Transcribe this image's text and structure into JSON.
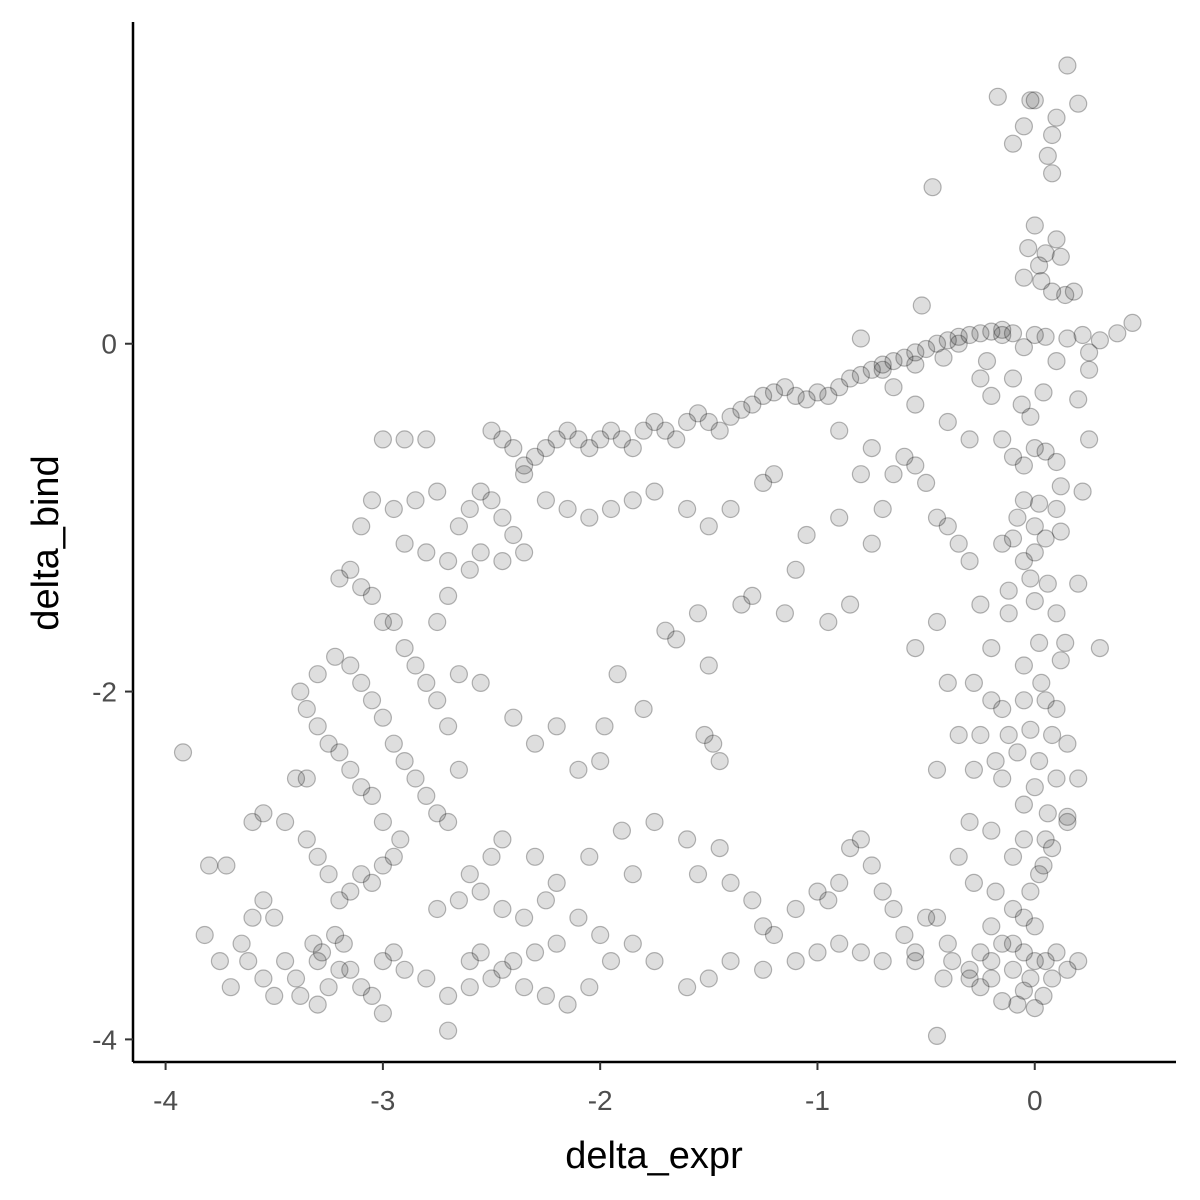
{
  "chart_data": {
    "type": "scatter",
    "title": "",
    "xlabel": "delta_expr",
    "ylabel": "delta_bind",
    "xlim": [
      -4.15,
      0.65
    ],
    "ylim": [
      -4.13,
      1.85
    ],
    "xticks": [
      -4,
      -3,
      -2,
      -1,
      0
    ],
    "yticks": [
      -4,
      -2,
      0
    ],
    "x_tick_labels": [
      "-4",
      "-3",
      "-2",
      "-1",
      "0"
    ],
    "y_tick_labels": [
      "-4",
      "-2",
      "0"
    ],
    "grid": false,
    "legend": "none",
    "point_color": "#000000",
    "point_fill_opacity": 0.13,
    "points": [
      [
        0.15,
        1.6
      ],
      [
        -0.17,
        1.42
      ],
      [
        -0.02,
        1.4
      ],
      [
        0.0,
        1.4
      ],
      [
        0.2,
        1.38
      ],
      [
        0.1,
        1.3
      ],
      [
        -0.05,
        1.25
      ],
      [
        0.08,
        1.2
      ],
      [
        -0.1,
        1.15
      ],
      [
        0.06,
        1.08
      ],
      [
        0.08,
        0.98
      ],
      [
        -0.47,
        0.9
      ],
      [
        0.0,
        0.68
      ],
      [
        0.1,
        0.6
      ],
      [
        -0.03,
        0.55
      ],
      [
        0.05,
        0.52
      ],
      [
        0.12,
        0.5
      ],
      [
        0.02,
        0.45
      ],
      [
        -0.05,
        0.38
      ],
      [
        0.03,
        0.36
      ],
      [
        0.08,
        0.3
      ],
      [
        0.14,
        0.28
      ],
      [
        0.18,
        0.3
      ],
      [
        -0.52,
        0.22
      ],
      [
        0.45,
        0.12
      ],
      [
        -0.8,
        0.03
      ],
      [
        -0.35,
        0.0
      ],
      [
        -0.15,
        0.05
      ],
      [
        -0.05,
        -0.02
      ],
      [
        0.22,
        0.05
      ],
      [
        0.3,
        0.02
      ],
      [
        0.38,
        0.06
      ],
      [
        0.25,
        -0.05
      ],
      [
        0.1,
        -0.1
      ],
      [
        0.25,
        -0.15
      ],
      [
        -0.22,
        -0.1
      ],
      [
        -0.42,
        -0.08
      ],
      [
        -0.55,
        -0.12
      ],
      [
        -0.7,
        -0.15
      ],
      [
        -0.65,
        -0.25
      ],
      [
        -0.55,
        -0.35
      ],
      [
        -0.4,
        -0.45
      ],
      [
        -0.3,
        -0.55
      ],
      [
        -0.15,
        -0.55
      ],
      [
        -0.1,
        -0.65
      ],
      [
        -0.05,
        -0.7
      ],
      [
        0.0,
        -0.6
      ],
      [
        0.05,
        -0.62
      ],
      [
        0.1,
        -0.68
      ],
      [
        -0.02,
        -0.42
      ],
      [
        0.2,
        -0.32
      ],
      [
        0.25,
        -0.55
      ],
      [
        0.04,
        -0.28
      ],
      [
        -0.06,
        -0.35
      ],
      [
        0.12,
        -0.82
      ],
      [
        0.22,
        -0.85
      ],
      [
        0.1,
        -0.95
      ],
      [
        0.02,
        -0.92
      ],
      [
        -0.05,
        -0.9
      ],
      [
        -0.08,
        -1.0
      ],
      [
        0.0,
        -1.05
      ],
      [
        0.05,
        -1.12
      ],
      [
        0.12,
        -1.08
      ],
      [
        -0.1,
        -1.12
      ],
      [
        -0.15,
        -1.15
      ],
      [
        -0.05,
        -1.25
      ],
      [
        0.0,
        -1.2
      ],
      [
        -0.02,
        -1.35
      ],
      [
        0.06,
        -1.38
      ],
      [
        -0.12,
        -1.42
      ],
      [
        0.0,
        -1.48
      ],
      [
        0.1,
        -1.55
      ],
      [
        0.2,
        -1.38
      ],
      [
        -0.12,
        -1.55
      ],
      [
        -0.25,
        -1.5
      ],
      [
        0.14,
        -1.72
      ],
      [
        0.02,
        -1.72
      ],
      [
        -0.05,
        -1.85
      ],
      [
        0.12,
        -1.82
      ],
      [
        0.03,
        -1.95
      ],
      [
        -0.2,
        -1.75
      ],
      [
        0.3,
        -1.75
      ],
      [
        -0.55,
        -1.75
      ],
      [
        -0.4,
        -1.95
      ],
      [
        -0.28,
        -1.95
      ],
      [
        -0.2,
        -2.05
      ],
      [
        -0.15,
        -2.1
      ],
      [
        -0.05,
        -2.05
      ],
      [
        0.05,
        -2.05
      ],
      [
        0.1,
        -2.1
      ],
      [
        -0.12,
        -2.25
      ],
      [
        -0.02,
        -2.22
      ],
      [
        -0.25,
        -2.25
      ],
      [
        -0.35,
        -2.25
      ],
      [
        -0.18,
        -2.4
      ],
      [
        -0.08,
        -2.35
      ],
      [
        0.08,
        -2.25
      ],
      [
        0.15,
        -2.3
      ],
      [
        0.02,
        -2.4
      ],
      [
        -0.45,
        -2.45
      ],
      [
        -0.28,
        -2.45
      ],
      [
        -0.15,
        -2.5
      ],
      [
        0.0,
        -2.55
      ],
      [
        0.1,
        -2.5
      ],
      [
        0.2,
        -2.5
      ],
      [
        -0.05,
        -2.65
      ],
      [
        0.06,
        -2.7
      ],
      [
        -0.3,
        -2.75
      ],
      [
        0.15,
        -2.72
      ],
      [
        0.15,
        -2.75
      ],
      [
        -0.2,
        -2.8
      ],
      [
        -0.05,
        -2.85
      ],
      [
        0.05,
        -2.85
      ],
      [
        0.08,
        -2.9
      ],
      [
        -0.1,
        -2.95
      ],
      [
        -0.35,
        -2.95
      ],
      [
        0.02,
        -3.05
      ],
      [
        -0.02,
        -3.15
      ],
      [
        0.04,
        -3.0
      ],
      [
        -0.18,
        -3.15
      ],
      [
        -0.28,
        -3.1
      ],
      [
        -0.1,
        -3.25
      ],
      [
        -0.05,
        -3.3
      ],
      [
        0.0,
        -3.35
      ],
      [
        -0.2,
        -3.35
      ],
      [
        -0.15,
        -3.45
      ],
      [
        -0.05,
        -3.5
      ],
      [
        0.0,
        -3.55
      ],
      [
        0.05,
        -3.55
      ],
      [
        0.1,
        -3.5
      ],
      [
        -0.1,
        -3.6
      ],
      [
        -0.2,
        -3.65
      ],
      [
        -0.3,
        -3.6
      ],
      [
        -0.42,
        -3.65
      ],
      [
        -0.25,
        -3.7
      ],
      [
        -0.05,
        -3.72
      ],
      [
        0.04,
        -3.75
      ],
      [
        -0.15,
        -3.78
      ],
      [
        0.0,
        -3.82
      ],
      [
        -0.45,
        -3.98
      ],
      [
        -0.55,
        -3.55
      ],
      [
        -0.4,
        -3.45
      ],
      [
        -0.45,
        -3.3
      ],
      [
        -0.5,
        -3.3
      ],
      [
        -0.25,
        -3.5
      ],
      [
        -0.1,
        -3.45
      ],
      [
        0.2,
        -3.55
      ],
      [
        -3.92,
        -2.35
      ],
      [
        -3.8,
        -3.0
      ],
      [
        -3.72,
        -3.0
      ],
      [
        -3.82,
        -3.4
      ],
      [
        -3.75,
        -3.55
      ],
      [
        -3.7,
        -3.7
      ],
      [
        -3.65,
        -3.45
      ],
      [
        -3.6,
        -3.3
      ],
      [
        -3.55,
        -3.2
      ],
      [
        -3.5,
        -3.3
      ],
      [
        -3.45,
        -3.55
      ],
      [
        -3.4,
        -3.65
      ],
      [
        -3.38,
        -3.75
      ],
      [
        -3.3,
        -3.8
      ],
      [
        -3.25,
        -3.7
      ],
      [
        -3.2,
        -3.6
      ],
      [
        -3.3,
        -3.55
      ],
      [
        -3.28,
        -3.5
      ],
      [
        -3.32,
        -3.45
      ],
      [
        -3.22,
        -3.4
      ],
      [
        -3.18,
        -3.45
      ],
      [
        -3.15,
        -3.6
      ],
      [
        -3.1,
        -3.7
      ],
      [
        -3.05,
        -3.75
      ],
      [
        -3.0,
        -3.85
      ],
      [
        -3.5,
        -3.75
      ],
      [
        -3.55,
        -3.65
      ],
      [
        -3.62,
        -3.55
      ],
      [
        -3.6,
        -2.75
      ],
      [
        -3.55,
        -2.7
      ],
      [
        -3.4,
        -2.5
      ],
      [
        -3.35,
        -2.5
      ],
      [
        -3.45,
        -2.75
      ],
      [
        -3.35,
        -2.85
      ],
      [
        -3.3,
        -2.95
      ],
      [
        -3.25,
        -3.05
      ],
      [
        -3.2,
        -3.2
      ],
      [
        -3.15,
        -3.15
      ],
      [
        -3.1,
        -3.05
      ],
      [
        -3.05,
        -3.1
      ],
      [
        -3.0,
        -3.0
      ],
      [
        -2.95,
        -2.95
      ],
      [
        -2.92,
        -2.85
      ],
      [
        -3.0,
        -2.75
      ],
      [
        -3.05,
        -2.6
      ],
      [
        -3.1,
        -2.55
      ],
      [
        -3.15,
        -2.45
      ],
      [
        -3.2,
        -2.35
      ],
      [
        -3.25,
        -2.3
      ],
      [
        -3.3,
        -2.2
      ],
      [
        -3.35,
        -2.1
      ],
      [
        -3.38,
        -2.0
      ],
      [
        -3.3,
        -1.9
      ],
      [
        -3.22,
        -1.8
      ],
      [
        -3.15,
        -1.85
      ],
      [
        -3.1,
        -1.95
      ],
      [
        -3.05,
        -2.05
      ],
      [
        -3.0,
        -2.15
      ],
      [
        -2.95,
        -2.3
      ],
      [
        -2.9,
        -2.4
      ],
      [
        -2.85,
        -2.5
      ],
      [
        -2.8,
        -2.6
      ],
      [
        -2.75,
        -2.7
      ],
      [
        -2.7,
        -2.75
      ],
      [
        -2.65,
        -2.45
      ],
      [
        -2.7,
        -2.2
      ],
      [
        -2.75,
        -2.05
      ],
      [
        -2.8,
        -1.95
      ],
      [
        -2.85,
        -1.85
      ],
      [
        -2.9,
        -1.75
      ],
      [
        -2.95,
        -1.6
      ],
      [
        -3.0,
        -1.6
      ],
      [
        -3.05,
        -1.45
      ],
      [
        -3.1,
        -1.4
      ],
      [
        -3.15,
        -1.3
      ],
      [
        -3.2,
        -1.35
      ],
      [
        -3.1,
        -1.05
      ],
      [
        -3.0,
        -0.55
      ],
      [
        -2.9,
        -0.55
      ],
      [
        -2.8,
        -0.55
      ],
      [
        -2.75,
        -0.85
      ],
      [
        -2.85,
        -0.9
      ],
      [
        -2.95,
        -0.95
      ],
      [
        -3.05,
        -0.9
      ],
      [
        -2.9,
        -1.15
      ],
      [
        -2.8,
        -1.2
      ],
      [
        -2.7,
        -1.25
      ],
      [
        -2.65,
        -1.05
      ],
      [
        -2.6,
        -0.95
      ],
      [
        -2.55,
        -0.85
      ],
      [
        -2.5,
        -0.9
      ],
      [
        -2.45,
        -1.0
      ],
      [
        -2.4,
        -1.1
      ],
      [
        -2.35,
        -1.2
      ],
      [
        -2.45,
        -1.25
      ],
      [
        -2.55,
        -1.2
      ],
      [
        -2.6,
        -1.3
      ],
      [
        -2.7,
        -1.45
      ],
      [
        -2.75,
        -1.6
      ],
      [
        -2.65,
        -1.9
      ],
      [
        -2.55,
        -1.95
      ],
      [
        -2.5,
        -0.5
      ],
      [
        -2.45,
        -0.55
      ],
      [
        -2.4,
        -0.6
      ],
      [
        -2.35,
        -0.7
      ],
      [
        -2.3,
        -0.65
      ],
      [
        -2.25,
        -0.6
      ],
      [
        -2.2,
        -0.55
      ],
      [
        -2.15,
        -0.5
      ],
      [
        -2.1,
        -0.55
      ],
      [
        -2.05,
        -0.6
      ],
      [
        -2.0,
        -0.55
      ],
      [
        -1.95,
        -0.5
      ],
      [
        -1.9,
        -0.55
      ],
      [
        -1.85,
        -0.6
      ],
      [
        -1.8,
        -0.5
      ],
      [
        -1.75,
        -0.45
      ],
      [
        -1.7,
        -0.5
      ],
      [
        -1.65,
        -0.55
      ],
      [
        -1.6,
        -0.45
      ],
      [
        -1.55,
        -0.4
      ],
      [
        -1.5,
        -0.45
      ],
      [
        -1.45,
        -0.5
      ],
      [
        -1.4,
        -0.42
      ],
      [
        -1.35,
        -0.38
      ],
      [
        -1.3,
        -0.35
      ],
      [
        -1.25,
        -0.3
      ],
      [
        -1.2,
        -0.28
      ],
      [
        -1.15,
        -0.25
      ],
      [
        -1.1,
        -0.3
      ],
      [
        -1.05,
        -0.32
      ],
      [
        -1.0,
        -0.28
      ],
      [
        -0.95,
        -0.3
      ],
      [
        -0.9,
        -0.25
      ],
      [
        -0.85,
        -0.2
      ],
      [
        -0.8,
        -0.18
      ],
      [
        -0.75,
        -0.15
      ],
      [
        -0.7,
        -0.12
      ],
      [
        -0.65,
        -0.1
      ],
      [
        -0.6,
        -0.08
      ],
      [
        -0.55,
        -0.05
      ],
      [
        -0.5,
        -0.03
      ],
      [
        -0.45,
        0.0
      ],
      [
        -0.4,
        0.02
      ],
      [
        -0.35,
        0.04
      ],
      [
        -0.3,
        0.05
      ],
      [
        -0.25,
        0.06
      ],
      [
        -0.2,
        0.07
      ],
      [
        -0.15,
        0.08
      ],
      [
        -0.1,
        0.06
      ],
      [
        0.0,
        0.05
      ],
      [
        0.05,
        0.04
      ],
      [
        0.15,
        0.03
      ],
      [
        -2.4,
        -2.15
      ],
      [
        -2.3,
        -2.3
      ],
      [
        -2.2,
        -2.2
      ],
      [
        -2.1,
        -2.45
      ],
      [
        -1.98,
        -2.2
      ],
      [
        -1.92,
        -1.9
      ],
      [
        -1.8,
        -2.1
      ],
      [
        -1.5,
        -1.85
      ],
      [
        -1.48,
        -2.3
      ],
      [
        -1.45,
        -2.4
      ],
      [
        -1.52,
        -2.25
      ],
      [
        -1.55,
        -1.55
      ],
      [
        -1.65,
        -1.7
      ],
      [
        -1.7,
        -1.65
      ],
      [
        -1.1,
        -1.3
      ],
      [
        -1.05,
        -1.1
      ],
      [
        -0.9,
        -1.0
      ],
      [
        -0.75,
        -1.15
      ],
      [
        -0.7,
        -0.95
      ],
      [
        -0.8,
        -0.75
      ],
      [
        -0.85,
        -1.5
      ],
      [
        -0.95,
        -1.6
      ],
      [
        -1.3,
        -1.45
      ],
      [
        -1.35,
        -1.5
      ],
      [
        -2.0,
        -2.4
      ],
      [
        -2.45,
        -2.85
      ],
      [
        -2.5,
        -2.95
      ],
      [
        -2.3,
        -2.95
      ],
      [
        -2.2,
        -3.1
      ],
      [
        -2.05,
        -2.95
      ],
      [
        -1.9,
        -2.8
      ],
      [
        -1.85,
        -3.05
      ],
      [
        -1.75,
        -2.75
      ],
      [
        -1.6,
        -2.85
      ],
      [
        -1.55,
        -3.05
      ],
      [
        -1.45,
        -2.9
      ],
      [
        -1.4,
        -3.1
      ],
      [
        -1.3,
        -3.2
      ],
      [
        -1.25,
        -3.35
      ],
      [
        -1.2,
        -3.4
      ],
      [
        -1.1,
        -3.25
      ],
      [
        -1.0,
        -3.15
      ],
      [
        -0.95,
        -3.2
      ],
      [
        -0.9,
        -3.1
      ],
      [
        -0.85,
        -2.9
      ],
      [
        -0.8,
        -2.85
      ],
      [
        -0.75,
        -3.0
      ],
      [
        -0.7,
        -3.15
      ],
      [
        -0.65,
        -3.25
      ],
      [
        -0.6,
        -3.4
      ],
      [
        -0.55,
        -3.5
      ],
      [
        -0.7,
        -3.55
      ],
      [
        -0.8,
        -3.5
      ],
      [
        -0.9,
        -3.45
      ],
      [
        -1.0,
        -3.5
      ],
      [
        -1.1,
        -3.55
      ],
      [
        -1.25,
        -3.6
      ],
      [
        -1.4,
        -3.55
      ],
      [
        -1.5,
        -3.65
      ],
      [
        -1.6,
        -3.7
      ],
      [
        -1.75,
        -3.55
      ],
      [
        -1.85,
        -3.45
      ],
      [
        -2.0,
        -3.4
      ],
      [
        -2.1,
        -3.3
      ],
      [
        -2.2,
        -3.45
      ],
      [
        -2.3,
        -3.5
      ],
      [
        -2.4,
        -3.55
      ],
      [
        -2.5,
        -3.65
      ],
      [
        -2.6,
        -3.7
      ],
      [
        -2.7,
        -3.75
      ],
      [
        -2.8,
        -3.65
      ],
      [
        -2.9,
        -3.6
      ],
      [
        -2.95,
        -3.5
      ],
      [
        -3.0,
        -3.55
      ],
      [
        -2.6,
        -3.55
      ],
      [
        -2.55,
        -3.5
      ],
      [
        -2.45,
        -3.6
      ],
      [
        -2.35,
        -3.7
      ],
      [
        -2.25,
        -3.75
      ],
      [
        -2.15,
        -3.8
      ],
      [
        -2.05,
        -3.7
      ],
      [
        -2.7,
        -3.95
      ],
      [
        -1.95,
        -3.55
      ],
      [
        -2.75,
        -3.25
      ],
      [
        -2.65,
        -3.2
      ],
      [
        -2.6,
        -3.05
      ],
      [
        -2.55,
        -3.15
      ],
      [
        -2.45,
        -3.25
      ],
      [
        -2.35,
        -3.3
      ],
      [
        -2.25,
        -3.2
      ],
      [
        -0.45,
        -1.6
      ],
      [
        -0.4,
        -1.05
      ],
      [
        -0.35,
        -1.15
      ],
      [
        -0.3,
        -1.25
      ],
      [
        -0.45,
        -1.0
      ],
      [
        -0.5,
        -0.8
      ],
      [
        -0.55,
        -0.7
      ],
      [
        -0.6,
        -0.65
      ],
      [
        -0.65,
        -0.75
      ],
      [
        -0.75,
        -0.6
      ],
      [
        -0.9,
        -0.5
      ],
      [
        -1.2,
        -0.75
      ],
      [
        -1.25,
        -0.8
      ],
      [
        -1.4,
        -0.95
      ],
      [
        -1.5,
        -1.05
      ],
      [
        -1.6,
        -0.95
      ],
      [
        -1.75,
        -0.85
      ],
      [
        -1.85,
        -0.9
      ],
      [
        -1.95,
        -0.95
      ],
      [
        -2.05,
        -1.0
      ],
      [
        -2.15,
        -0.95
      ],
      [
        -2.25,
        -0.9
      ],
      [
        -2.35,
        -0.75
      ],
      [
        -1.15,
        -1.55
      ],
      [
        -0.2,
        -0.3
      ],
      [
        -0.25,
        -0.2
      ],
      [
        -0.1,
        -0.2
      ],
      [
        -0.3,
        -3.65
      ],
      [
        -0.38,
        -3.55
      ],
      [
        -0.2,
        -3.55
      ],
      [
        0.15,
        -3.6
      ],
      [
        0.08,
        -3.65
      ],
      [
        -0.02,
        -3.65
      ],
      [
        -0.08,
        -3.8
      ]
    ]
  }
}
